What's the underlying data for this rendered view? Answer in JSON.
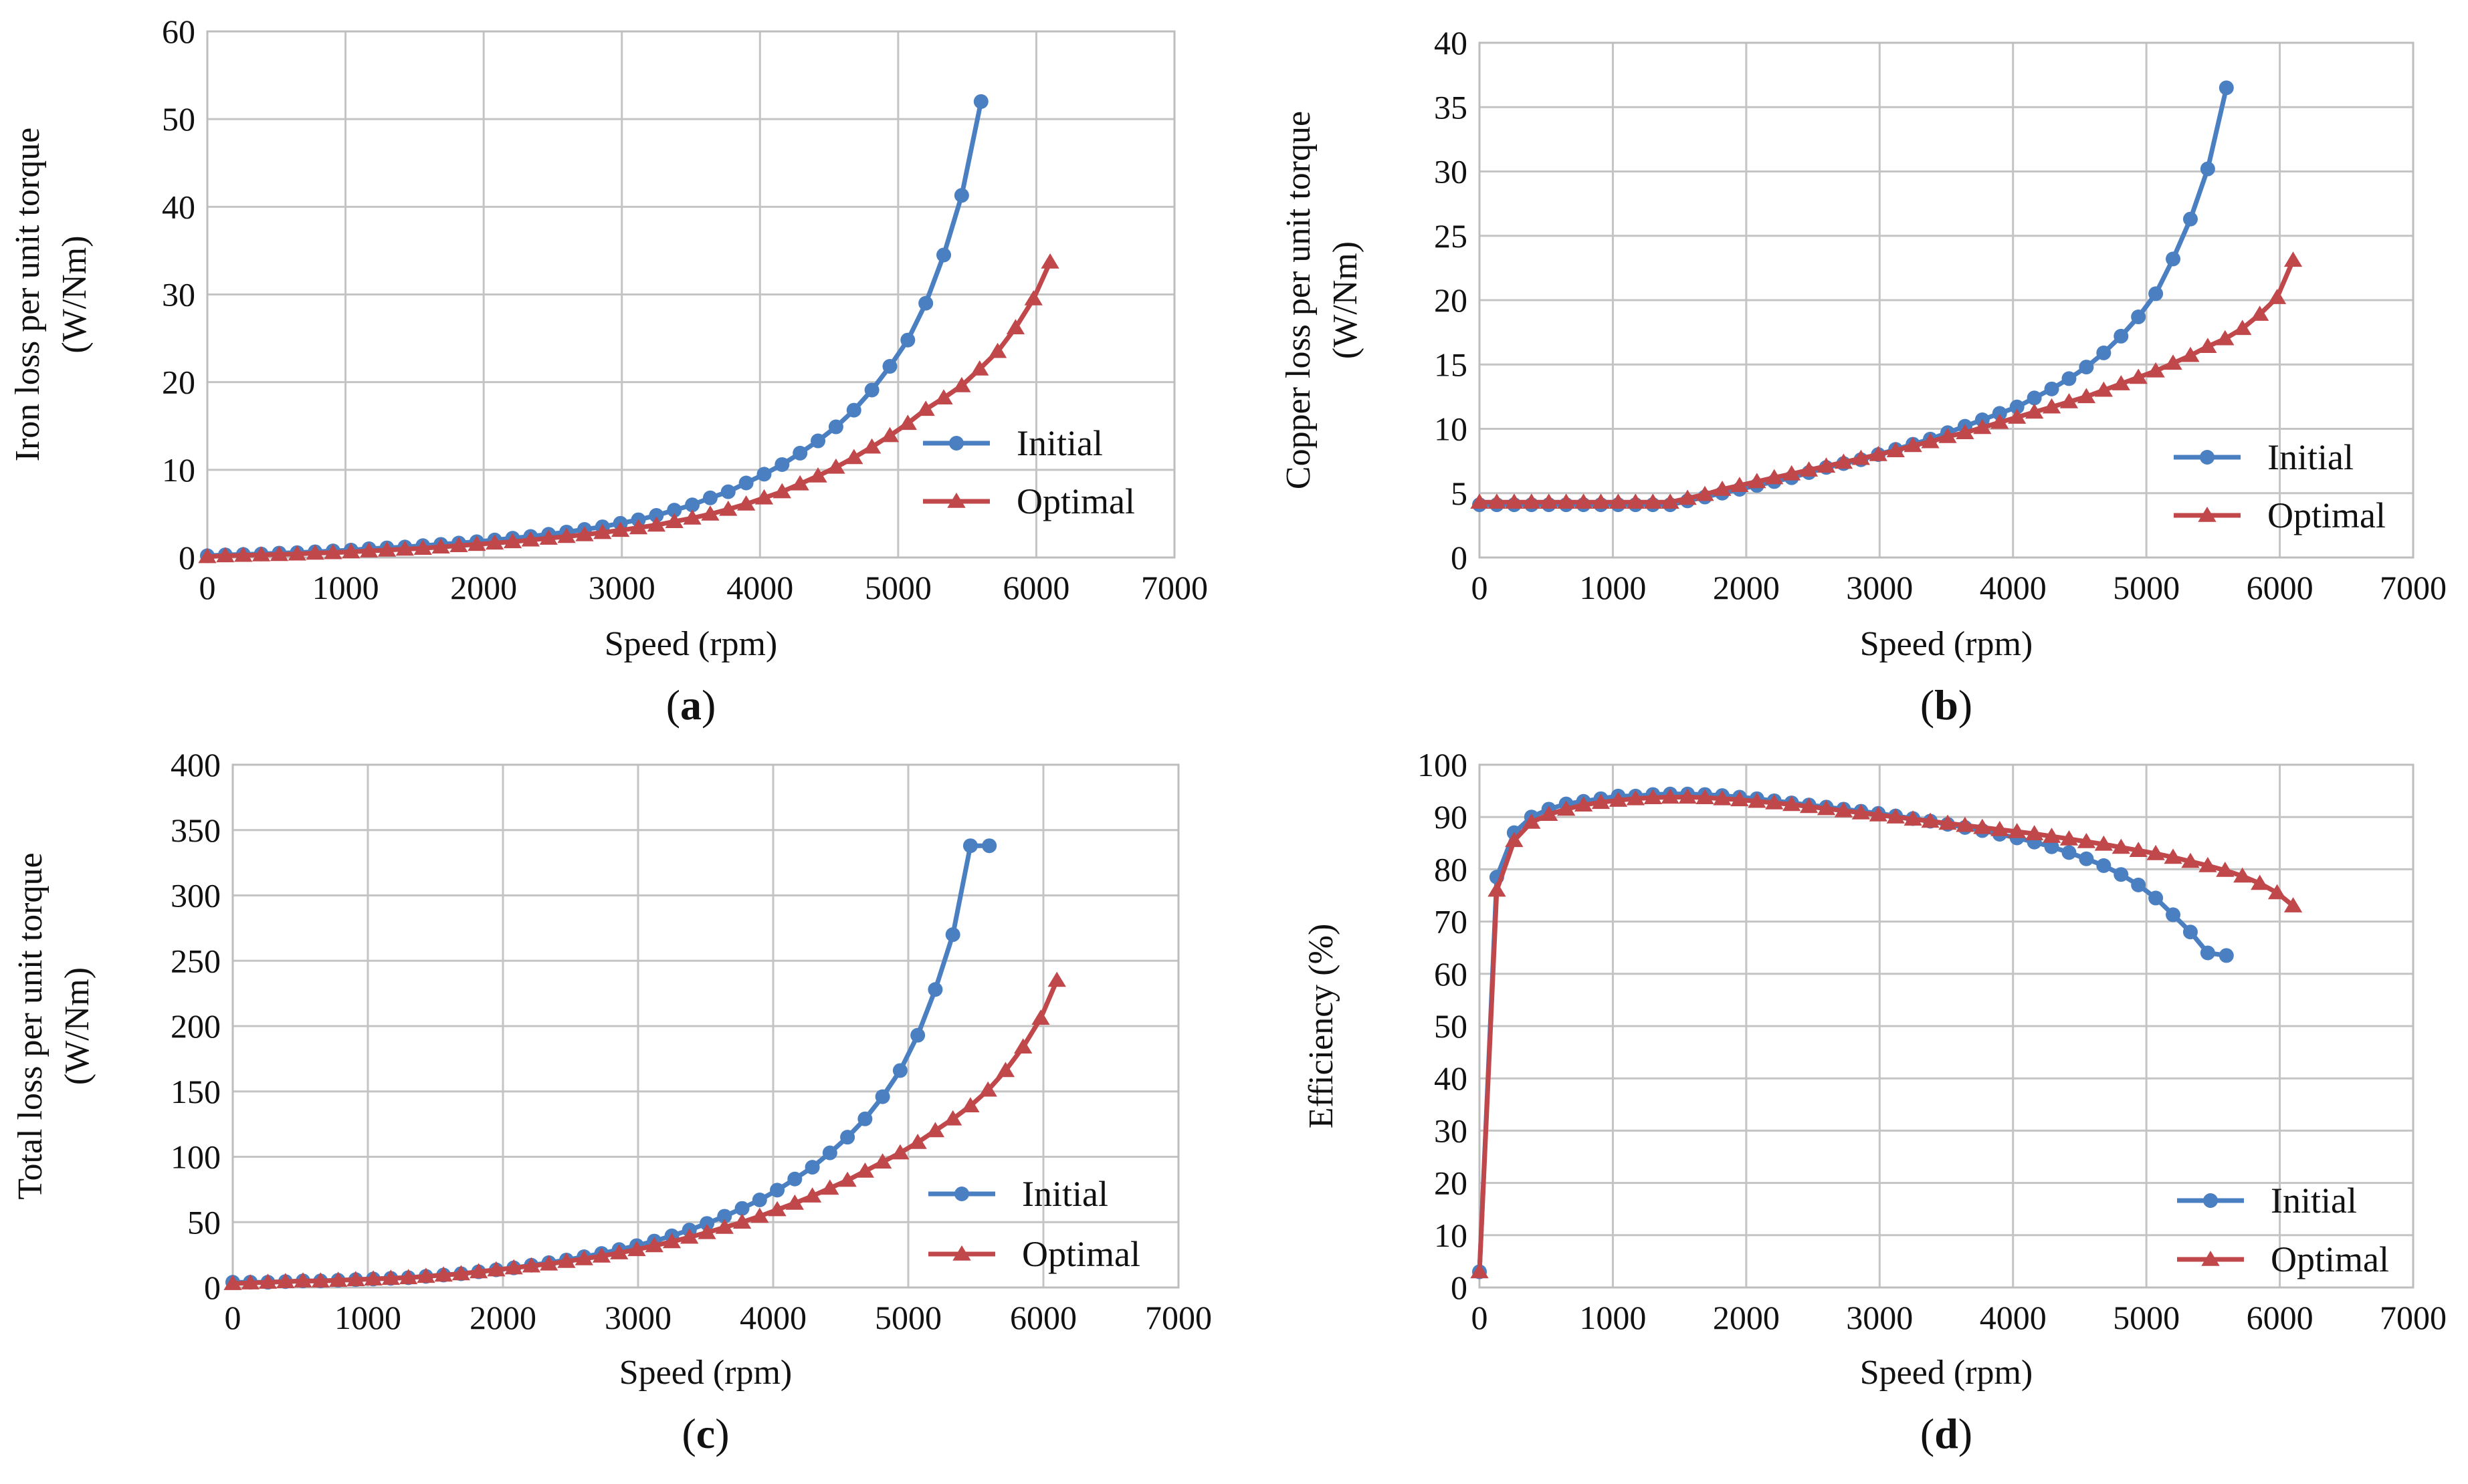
{
  "chart_data": [
    {
      "id": "a",
      "type": "line",
      "panel_label": "a",
      "xlabel": "Speed (rpm)",
      "ylabel": [
        "Iron loss per unit torque",
        "(W/Nm)"
      ],
      "xlim": [
        0,
        7000
      ],
      "ylim": [
        0,
        60
      ],
      "xticks": [
        0,
        1000,
        2000,
        3000,
        4000,
        5000,
        6000,
        7000
      ],
      "yticks": [
        0,
        10,
        20,
        30,
        40,
        50,
        60
      ],
      "legend_position": "right",
      "series": [
        {
          "name": "Initial",
          "color": "#4a7fc1",
          "marker": "circle",
          "x": [
            0,
            130,
            260,
            390,
            520,
            650,
            780,
            910,
            1040,
            1170,
            1300,
            1430,
            1560,
            1690,
            1820,
            1950,
            2080,
            2210,
            2340,
            2470,
            2600,
            2730,
            2860,
            2990,
            3120,
            3250,
            3380,
            3510,
            3640,
            3770,
            3900,
            4030,
            4160,
            4290,
            4420,
            4550,
            4680,
            4810,
            4940,
            5070,
            5200,
            5330,
            5460,
            5600
          ],
          "y": [
            0.2,
            0.3,
            0.35,
            0.4,
            0.5,
            0.55,
            0.65,
            0.75,
            0.85,
            1.0,
            1.1,
            1.2,
            1.35,
            1.5,
            1.65,
            1.8,
            2.0,
            2.2,
            2.4,
            2.65,
            2.9,
            3.2,
            3.5,
            3.9,
            4.3,
            4.8,
            5.4,
            6.0,
            6.8,
            7.5,
            8.5,
            9.5,
            10.6,
            11.9,
            13.3,
            14.9,
            16.8,
            19.1,
            21.8,
            24.8,
            29.0,
            34.5,
            41.3,
            52.0
          ]
        },
        {
          "name": "Optimal",
          "color": "#c0474a",
          "marker": "triangle",
          "x": [
            0,
            130,
            260,
            390,
            520,
            650,
            780,
            910,
            1040,
            1170,
            1300,
            1430,
            1560,
            1690,
            1820,
            1950,
            2080,
            2210,
            2340,
            2470,
            2600,
            2730,
            2860,
            2990,
            3120,
            3250,
            3380,
            3510,
            3640,
            3770,
            3900,
            4030,
            4160,
            4290,
            4420,
            4550,
            4680,
            4810,
            4940,
            5070,
            5200,
            5330,
            5460,
            5590,
            5720,
            5850,
            5980,
            6100
          ],
          "y": [
            0.1,
            0.2,
            0.25,
            0.3,
            0.35,
            0.4,
            0.5,
            0.55,
            0.65,
            0.75,
            0.85,
            0.95,
            1.05,
            1.2,
            1.35,
            1.5,
            1.65,
            1.8,
            2.0,
            2.2,
            2.4,
            2.6,
            2.85,
            3.1,
            3.4,
            3.7,
            4.1,
            4.5,
            4.95,
            5.5,
            6.1,
            6.8,
            7.5,
            8.4,
            9.3,
            10.3,
            11.4,
            12.6,
            13.9,
            15.3,
            16.9,
            18.2,
            19.6,
            21.5,
            23.5,
            26.2,
            29.5,
            33.7
          ]
        }
      ]
    },
    {
      "id": "b",
      "type": "line",
      "panel_label": "b",
      "xlabel": "Speed (rpm)",
      "ylabel": [
        "Copper loss per unit torque",
        "(W/Nm)"
      ],
      "xlim": [
        0,
        7000
      ],
      "ylim": [
        0,
        40
      ],
      "xticks": [
        0,
        1000,
        2000,
        3000,
        4000,
        5000,
        6000,
        7000
      ],
      "yticks": [
        0,
        5,
        10,
        15,
        20,
        25,
        30,
        35,
        40
      ],
      "legend_position": "right",
      "series": [
        {
          "name": "Initial",
          "color": "#4a7fc1",
          "marker": "circle",
          "x": [
            0,
            130,
            260,
            390,
            520,
            650,
            780,
            910,
            1040,
            1170,
            1300,
            1430,
            1560,
            1690,
            1820,
            1950,
            2080,
            2210,
            2340,
            2470,
            2600,
            2730,
            2860,
            2990,
            3120,
            3250,
            3380,
            3510,
            3640,
            3770,
            3900,
            4030,
            4160,
            4290,
            4420,
            4550,
            4680,
            4810,
            4940,
            5070,
            5200,
            5330,
            5460,
            5600
          ],
          "y": [
            4.1,
            4.1,
            4.1,
            4.1,
            4.1,
            4.1,
            4.1,
            4.1,
            4.1,
            4.1,
            4.1,
            4.1,
            4.4,
            4.7,
            5.0,
            5.3,
            5.6,
            5.9,
            6.2,
            6.6,
            7.0,
            7.3,
            7.6,
            8.0,
            8.4,
            8.8,
            9.2,
            9.7,
            10.2,
            10.7,
            11.2,
            11.7,
            12.4,
            13.1,
            13.9,
            14.8,
            15.9,
            17.2,
            18.7,
            20.5,
            23.2,
            26.3,
            30.2,
            36.5
          ]
        },
        {
          "name": "Optimal",
          "color": "#c0474a",
          "marker": "triangle",
          "x": [
            0,
            130,
            260,
            390,
            520,
            650,
            780,
            910,
            1040,
            1170,
            1300,
            1430,
            1560,
            1690,
            1820,
            1950,
            2080,
            2210,
            2340,
            2470,
            2600,
            2730,
            2860,
            2990,
            3120,
            3250,
            3380,
            3510,
            3640,
            3770,
            3900,
            4030,
            4160,
            4290,
            4420,
            4550,
            4680,
            4810,
            4940,
            5070,
            5200,
            5330,
            5460,
            5590,
            5720,
            5850,
            5980,
            6100
          ],
          "y": [
            4.3,
            4.3,
            4.3,
            4.3,
            4.3,
            4.3,
            4.3,
            4.3,
            4.3,
            4.3,
            4.3,
            4.3,
            4.6,
            4.9,
            5.3,
            5.6,
            5.9,
            6.2,
            6.5,
            6.8,
            7.1,
            7.4,
            7.7,
            8.0,
            8.3,
            8.7,
            9.0,
            9.4,
            9.7,
            10.1,
            10.5,
            10.9,
            11.3,
            11.7,
            12.1,
            12.5,
            13.0,
            13.5,
            14.0,
            14.5,
            15.1,
            15.7,
            16.4,
            17.0,
            17.8,
            18.9,
            20.2,
            23.1
          ]
        }
      ]
    },
    {
      "id": "c",
      "type": "line",
      "panel_label": "c",
      "xlabel": "Speed (rpm)",
      "ylabel": [
        "Total loss per unit torque",
        "(W/Nm)"
      ],
      "xlim": [
        0,
        7000
      ],
      "ylim": [
        0,
        400
      ],
      "xticks": [
        0,
        1000,
        2000,
        3000,
        4000,
        5000,
        6000,
        7000
      ],
      "yticks": [
        0,
        50,
        100,
        150,
        200,
        250,
        300,
        350,
        400
      ],
      "legend_position": "right",
      "series": [
        {
          "name": "Initial",
          "color": "#4a7fc1",
          "marker": "circle",
          "x": [
            0,
            130,
            260,
            390,
            520,
            650,
            780,
            910,
            1040,
            1170,
            1300,
            1430,
            1560,
            1690,
            1820,
            1950,
            2080,
            2210,
            2340,
            2470,
            2600,
            2730,
            2860,
            2990,
            3120,
            3250,
            3380,
            3510,
            3640,
            3770,
            3900,
            4030,
            4160,
            4290,
            4420,
            4550,
            4680,
            4810,
            4940,
            5070,
            5200,
            5330,
            5460,
            5600
          ],
          "y": [
            4,
            4,
            4,
            4.5,
            5,
            5,
            5.5,
            6,
            6.5,
            7,
            7.5,
            8.5,
            9.5,
            10.5,
            12,
            13.5,
            15,
            17,
            19,
            21,
            23.5,
            26,
            29,
            32,
            35.5,
            39.5,
            44,
            49,
            54.5,
            60.5,
            67,
            74.5,
            83,
            92,
            103,
            115,
            129,
            146,
            166,
            193,
            228,
            270,
            338,
            338
          ]
        },
        {
          "name": "Optimal",
          "color": "#c0474a",
          "marker": "triangle",
          "x": [
            0,
            130,
            260,
            390,
            520,
            650,
            780,
            910,
            1040,
            1170,
            1300,
            1430,
            1560,
            1690,
            1820,
            1950,
            2080,
            2210,
            2340,
            2470,
            2600,
            2730,
            2860,
            2990,
            3120,
            3250,
            3380,
            3510,
            3640,
            3770,
            3900,
            4030,
            4160,
            4290,
            4420,
            4550,
            4680,
            4810,
            4940,
            5070,
            5200,
            5330,
            5460,
            5590,
            5720,
            5850,
            5980,
            6100
          ],
          "y": [
            3,
            3.5,
            4,
            4.5,
            5,
            5,
            5.5,
            6,
            6.5,
            7,
            7.5,
            8.5,
            9.5,
            10.5,
            12,
            13.5,
            15,
            16.5,
            18,
            20,
            22,
            24,
            26.5,
            29,
            32,
            35,
            38.5,
            42,
            46,
            50,
            54.5,
            59.5,
            64.5,
            70,
            76,
            82,
            89,
            96,
            103,
            111,
            120,
            129,
            139,
            151,
            166,
            184,
            206,
            235
          ]
        }
      ]
    },
    {
      "id": "d",
      "type": "line",
      "panel_label": "d",
      "xlabel": "Speed (rpm)",
      "ylabel": [
        "Efficiency (%)"
      ],
      "xlim": [
        0,
        7000
      ],
      "ylim": [
        0,
        100
      ],
      "xticks": [
        0,
        1000,
        2000,
        3000,
        4000,
        5000,
        6000,
        7000
      ],
      "yticks": [
        0,
        10,
        20,
        30,
        40,
        50,
        60,
        70,
        80,
        90,
        100
      ],
      "legend_position": "bottom-right",
      "series": [
        {
          "name": "Initial",
          "color": "#4a7fc1",
          "marker": "circle",
          "x": [
            0,
            130,
            260,
            390,
            520,
            650,
            780,
            910,
            1040,
            1170,
            1300,
            1430,
            1560,
            1690,
            1820,
            1950,
            2080,
            2210,
            2340,
            2470,
            2600,
            2730,
            2860,
            2990,
            3120,
            3250,
            3380,
            3510,
            3640,
            3770,
            3900,
            4030,
            4160,
            4290,
            4420,
            4550,
            4680,
            4810,
            4940,
            5070,
            5200,
            5330,
            5460,
            5600
          ],
          "y": [
            3,
            78.5,
            87,
            90,
            91.5,
            92.5,
            93,
            93.5,
            94,
            94,
            94.3,
            94.4,
            94.4,
            94.3,
            94.1,
            93.8,
            93.5,
            93.1,
            92.7,
            92.3,
            91.9,
            91.5,
            91.1,
            90.7,
            90.2,
            89.7,
            89.2,
            88.6,
            88.0,
            87.4,
            86.7,
            86.0,
            85.2,
            84.3,
            83.2,
            82.0,
            80.7,
            79.0,
            77.0,
            74.5,
            71.3,
            68.0,
            64.0,
            63.5
          ]
        },
        {
          "name": "Optimal",
          "color": "#c0474a",
          "marker": "triangle",
          "x": [
            0,
            130,
            260,
            390,
            520,
            650,
            780,
            910,
            1040,
            1170,
            1300,
            1430,
            1560,
            1690,
            1820,
            1950,
            2080,
            2210,
            2340,
            2470,
            2600,
            2730,
            2860,
            2990,
            3120,
            3250,
            3380,
            3510,
            3640,
            3770,
            3900,
            4030,
            4160,
            4290,
            4420,
            4550,
            4680,
            4810,
            4940,
            5070,
            5200,
            5330,
            5460,
            5590,
            5720,
            5850,
            5980,
            6100
          ],
          "y": [
            3,
            76,
            85.5,
            89,
            90.5,
            91.5,
            92.3,
            92.8,
            93.2,
            93.5,
            93.7,
            93.8,
            93.8,
            93.7,
            93.5,
            93.3,
            93.0,
            92.7,
            92.4,
            92.0,
            91.6,
            91.2,
            90.8,
            90.4,
            90.0,
            89.6,
            89.2,
            88.8,
            88.4,
            88.0,
            87.6,
            87.2,
            86.8,
            86.3,
            85.8,
            85.3,
            84.8,
            84.2,
            83.6,
            83.0,
            82.3,
            81.5,
            80.7,
            79.8,
            78.7,
            77.3,
            75.5,
            73.0
          ]
        }
      ]
    }
  ]
}
